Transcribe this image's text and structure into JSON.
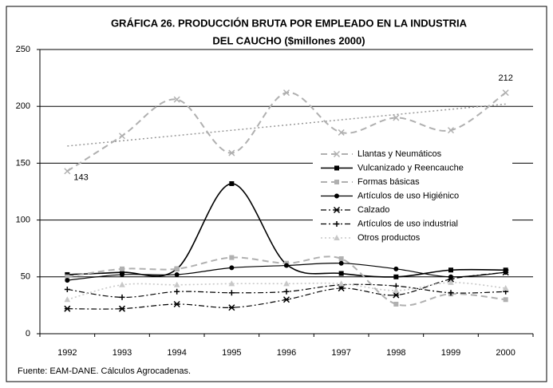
{
  "chart_data": {
    "type": "line",
    "title": "GRÁFICA 26. PRODUCCIÓN BRUTA POR EMPLEADO EN LA INDUSTRIA",
    "subtitle": "DEL CAUCHO ($millones 2000)",
    "source": "Fuente: EAM-DANE. Cálculos Agrocadenas.",
    "categories": [
      "1992",
      "1993",
      "1994",
      "1995",
      "1996",
      "1997",
      "1998",
      "1999",
      "2000"
    ],
    "ylim": [
      0,
      250
    ],
    "yticks": [
      0,
      50,
      100,
      150,
      200,
      250
    ],
    "grid": true,
    "smooth": true,
    "series": [
      {
        "name": "Llantas y  Neumáticos",
        "color": "#b0b0b0",
        "dash": "8 5",
        "marker": "x",
        "width": 2,
        "trendline": true,
        "values": [
          143,
          174,
          206,
          159,
          212,
          177,
          190,
          179,
          212
        ],
        "value_labels": [
          "143",
          null,
          null,
          null,
          null,
          null,
          null,
          null,
          "212"
        ]
      },
      {
        "name": "Vulcanizado y  Reencauche",
        "color": "#000000",
        "dash": "",
        "marker": "square",
        "width": 1.6,
        "values": [
          52,
          54,
          57,
          132,
          61,
          53,
          50,
          56,
          56
        ]
      },
      {
        "name": "Formas básicas",
        "color": "#b0b0b0",
        "dash": "8 5",
        "marker": "square",
        "width": 2,
        "values": [
          50,
          57,
          57,
          67,
          62,
          66,
          26,
          35,
          30
        ]
      },
      {
        "name": "Artículos de uso Higiénico",
        "color": "#000000",
        "dash": "",
        "marker": "circle",
        "width": 1.2,
        "values": [
          47,
          52,
          52,
          58,
          60,
          62,
          57,
          50,
          54
        ]
      },
      {
        "name": "Calzado",
        "color": "#000000",
        "dash": "7 3 2 3",
        "marker": "star",
        "width": 1.2,
        "values": [
          22,
          22,
          26,
          23,
          30,
          40,
          34,
          48,
          54
        ]
      },
      {
        "name": "Artículos de uso industrial",
        "color": "#000000",
        "dash": "7 3 2 3",
        "marker": "plus",
        "width": 1.2,
        "values": [
          39,
          32,
          37,
          36,
          37,
          43,
          42,
          36,
          37
        ]
      },
      {
        "name": "Otros productos",
        "color": "#c8c8c8",
        "dash": "2 3",
        "marker": "triangle",
        "width": 1.6,
        "values": [
          30,
          43,
          43,
          44,
          44,
          44,
          38,
          45,
          40
        ]
      }
    ]
  }
}
